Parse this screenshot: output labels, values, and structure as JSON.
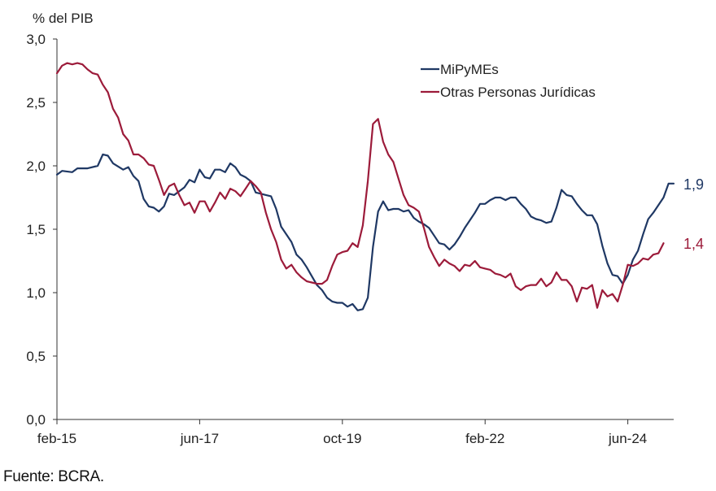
{
  "source": "Fuente: BCRA.",
  "chart_data": {
    "type": "line",
    "ylabel": "% del PIB",
    "ylim": [
      0,
      3.0
    ],
    "yticks": [
      0,
      0.5,
      1.0,
      1.5,
      2.0,
      2.5,
      3.0
    ],
    "ytick_labels": [
      "0,0",
      "0,5",
      "1,0",
      "1,5",
      "2,0",
      "2,5",
      "3,0"
    ],
    "x_range": [
      "2015-02",
      "2025-02"
    ],
    "x_ticks": [
      {
        "date": "2015-02",
        "label": "feb-15"
      },
      {
        "date": "2017-06",
        "label": "jun-17"
      },
      {
        "date": "2019-10",
        "label": "oct-19"
      },
      {
        "date": "2022-02",
        "label": "feb-22"
      },
      {
        "date": "2024-06",
        "label": "jun-24"
      }
    ],
    "grid": false,
    "legend_position": "top-right",
    "series": [
      {
        "name": "MiPyMEs",
        "color": "#1f3864",
        "end_label": "1,9",
        "points": [
          [
            "2015-02",
            1.93
          ],
          [
            "2015-03",
            1.96
          ],
          [
            "2015-05",
            1.95
          ],
          [
            "2015-06",
            1.98
          ],
          [
            "2015-08",
            1.98
          ],
          [
            "2015-10",
            2.0
          ],
          [
            "2015-11",
            2.09
          ],
          [
            "2015-12",
            2.08
          ],
          [
            "2016-01",
            2.02
          ],
          [
            "2016-03",
            1.97
          ],
          [
            "2016-04",
            1.99
          ],
          [
            "2016-05",
            1.92
          ],
          [
            "2016-06",
            1.88
          ],
          [
            "2016-07",
            1.74
          ],
          [
            "2016-08",
            1.68
          ],
          [
            "2016-09",
            1.67
          ],
          [
            "2016-10",
            1.64
          ],
          [
            "2016-11",
            1.68
          ],
          [
            "2016-12",
            1.78
          ],
          [
            "2017-01",
            1.77
          ],
          [
            "2017-02",
            1.8
          ],
          [
            "2017-03",
            1.83
          ],
          [
            "2017-04",
            1.89
          ],
          [
            "2017-05",
            1.87
          ],
          [
            "2017-06",
            1.97
          ],
          [
            "2017-07",
            1.91
          ],
          [
            "2017-08",
            1.9
          ],
          [
            "2017-09",
            1.97
          ],
          [
            "2017-10",
            1.97
          ],
          [
            "2017-11",
            1.95
          ],
          [
            "2017-12",
            2.02
          ],
          [
            "2018-01",
            1.99
          ],
          [
            "2018-02",
            1.93
          ],
          [
            "2018-03",
            1.91
          ],
          [
            "2018-04",
            1.88
          ],
          [
            "2018-05",
            1.79
          ],
          [
            "2018-06",
            1.78
          ],
          [
            "2018-07",
            1.77
          ],
          [
            "2018-08",
            1.76
          ],
          [
            "2018-09",
            1.66
          ],
          [
            "2018-10",
            1.52
          ],
          [
            "2018-11",
            1.46
          ],
          [
            "2018-12",
            1.4
          ],
          [
            "2019-01",
            1.3
          ],
          [
            "2019-02",
            1.26
          ],
          [
            "2019-03",
            1.2
          ],
          [
            "2019-04",
            1.13
          ],
          [
            "2019-05",
            1.06
          ],
          [
            "2019-06",
            1.02
          ],
          [
            "2019-07",
            0.96
          ],
          [
            "2019-08",
            0.93
          ],
          [
            "2019-09",
            0.92
          ],
          [
            "2019-10",
            0.92
          ],
          [
            "2019-11",
            0.89
          ],
          [
            "2019-12",
            0.91
          ],
          [
            "2020-01",
            0.86
          ],
          [
            "2020-02",
            0.87
          ],
          [
            "2020-03",
            0.96
          ],
          [
            "2020-04",
            1.36
          ],
          [
            "2020-05",
            1.64
          ],
          [
            "2020-06",
            1.72
          ],
          [
            "2020-07",
            1.65
          ],
          [
            "2020-08",
            1.66
          ],
          [
            "2020-09",
            1.66
          ],
          [
            "2020-10",
            1.64
          ],
          [
            "2020-11",
            1.65
          ],
          [
            "2020-12",
            1.59
          ],
          [
            "2021-01",
            1.56
          ],
          [
            "2021-02",
            1.54
          ],
          [
            "2021-03",
            1.51
          ],
          [
            "2021-04",
            1.45
          ],
          [
            "2021-05",
            1.39
          ],
          [
            "2021-06",
            1.38
          ],
          [
            "2021-07",
            1.34
          ],
          [
            "2021-08",
            1.38
          ],
          [
            "2021-09",
            1.44
          ],
          [
            "2021-10",
            1.51
          ],
          [
            "2021-11",
            1.57
          ],
          [
            "2021-12",
            1.63
          ],
          [
            "2022-01",
            1.7
          ],
          [
            "2022-02",
            1.7
          ],
          [
            "2022-03",
            1.73
          ],
          [
            "2022-04",
            1.75
          ],
          [
            "2022-05",
            1.75
          ],
          [
            "2022-06",
            1.73
          ],
          [
            "2022-07",
            1.75
          ],
          [
            "2022-08",
            1.75
          ],
          [
            "2022-09",
            1.7
          ],
          [
            "2022-10",
            1.66
          ],
          [
            "2022-11",
            1.6
          ],
          [
            "2022-12",
            1.58
          ],
          [
            "2023-01",
            1.57
          ],
          [
            "2023-02",
            1.55
          ],
          [
            "2023-03",
            1.56
          ],
          [
            "2023-04",
            1.67
          ],
          [
            "2023-05",
            1.81
          ],
          [
            "2023-06",
            1.77
          ],
          [
            "2023-07",
            1.76
          ],
          [
            "2023-08",
            1.7
          ],
          [
            "2023-09",
            1.65
          ],
          [
            "2023-10",
            1.61
          ],
          [
            "2023-11",
            1.61
          ],
          [
            "2023-12",
            1.54
          ],
          [
            "2024-01",
            1.37
          ],
          [
            "2024-02",
            1.23
          ],
          [
            "2024-03",
            1.14
          ],
          [
            "2024-04",
            1.13
          ],
          [
            "2024-05",
            1.07
          ],
          [
            "2024-06",
            1.14
          ],
          [
            "2024-07",
            1.26
          ],
          [
            "2024-08",
            1.33
          ],
          [
            "2024-09",
            1.46
          ],
          [
            "2024-10",
            1.58
          ],
          [
            "2024-11",
            1.63
          ],
          [
            "2024-12",
            1.69
          ],
          [
            "2025-01",
            1.75
          ],
          [
            "2025-02",
            1.86
          ],
          [
            "2025-03",
            1.86
          ]
        ]
      },
      {
        "name": "Otras Personas Jurídicas",
        "color": "#9c1b3a",
        "end_label": "1,4",
        "points": [
          [
            "2015-02",
            2.73
          ],
          [
            "2015-03",
            2.79
          ],
          [
            "2015-04",
            2.81
          ],
          [
            "2015-05",
            2.8
          ],
          [
            "2015-06",
            2.81
          ],
          [
            "2015-07",
            2.8
          ],
          [
            "2015-08",
            2.76
          ],
          [
            "2015-09",
            2.73
          ],
          [
            "2015-10",
            2.72
          ],
          [
            "2015-11",
            2.64
          ],
          [
            "2015-12",
            2.58
          ],
          [
            "2016-01",
            2.45
          ],
          [
            "2016-02",
            2.38
          ],
          [
            "2016-03",
            2.25
          ],
          [
            "2016-04",
            2.2
          ],
          [
            "2016-05",
            2.09
          ],
          [
            "2016-06",
            2.09
          ],
          [
            "2016-07",
            2.06
          ],
          [
            "2016-08",
            2.01
          ],
          [
            "2016-09",
            2.0
          ],
          [
            "2016-10",
            1.89
          ],
          [
            "2016-11",
            1.77
          ],
          [
            "2016-12",
            1.84
          ],
          [
            "2017-01",
            1.86
          ],
          [
            "2017-02",
            1.77
          ],
          [
            "2017-03",
            1.69
          ],
          [
            "2017-04",
            1.71
          ],
          [
            "2017-05",
            1.63
          ],
          [
            "2017-06",
            1.72
          ],
          [
            "2017-07",
            1.72
          ],
          [
            "2017-08",
            1.64
          ],
          [
            "2017-09",
            1.71
          ],
          [
            "2017-10",
            1.79
          ],
          [
            "2017-11",
            1.74
          ],
          [
            "2017-12",
            1.82
          ],
          [
            "2018-01",
            1.8
          ],
          [
            "2018-02",
            1.76
          ],
          [
            "2018-03",
            1.82
          ],
          [
            "2018-04",
            1.88
          ],
          [
            "2018-05",
            1.84
          ],
          [
            "2018-06",
            1.79
          ],
          [
            "2018-07",
            1.63
          ],
          [
            "2018-08",
            1.5
          ],
          [
            "2018-09",
            1.4
          ],
          [
            "2018-10",
            1.26
          ],
          [
            "2018-11",
            1.19
          ],
          [
            "2018-12",
            1.22
          ],
          [
            "2019-01",
            1.16
          ],
          [
            "2019-02",
            1.12
          ],
          [
            "2019-03",
            1.09
          ],
          [
            "2019-04",
            1.08
          ],
          [
            "2019-05",
            1.07
          ],
          [
            "2019-06",
            1.07
          ],
          [
            "2019-07",
            1.1
          ],
          [
            "2019-08",
            1.21
          ],
          [
            "2019-09",
            1.3
          ],
          [
            "2019-10",
            1.32
          ],
          [
            "2019-11",
            1.33
          ],
          [
            "2019-12",
            1.39
          ],
          [
            "2020-01",
            1.36
          ],
          [
            "2020-02",
            1.53
          ],
          [
            "2020-03",
            1.88
          ],
          [
            "2020-04",
            2.33
          ],
          [
            "2020-05",
            2.37
          ],
          [
            "2020-06",
            2.19
          ],
          [
            "2020-07",
            2.09
          ],
          [
            "2020-08",
            2.03
          ],
          [
            "2020-09",
            1.9
          ],
          [
            "2020-10",
            1.77
          ],
          [
            "2020-11",
            1.69
          ],
          [
            "2020-12",
            1.67
          ],
          [
            "2021-01",
            1.64
          ],
          [
            "2021-02",
            1.51
          ],
          [
            "2021-03",
            1.36
          ],
          [
            "2021-04",
            1.28
          ],
          [
            "2021-05",
            1.21
          ],
          [
            "2021-06",
            1.26
          ],
          [
            "2021-07",
            1.23
          ],
          [
            "2021-08",
            1.21
          ],
          [
            "2021-09",
            1.17
          ],
          [
            "2021-10",
            1.22
          ],
          [
            "2021-11",
            1.21
          ],
          [
            "2021-12",
            1.25
          ],
          [
            "2022-01",
            1.2
          ],
          [
            "2022-02",
            1.19
          ],
          [
            "2022-03",
            1.18
          ],
          [
            "2022-04",
            1.15
          ],
          [
            "2022-05",
            1.14
          ],
          [
            "2022-06",
            1.12
          ],
          [
            "2022-07",
            1.15
          ],
          [
            "2022-08",
            1.05
          ],
          [
            "2022-09",
            1.02
          ],
          [
            "2022-10",
            1.05
          ],
          [
            "2022-11",
            1.06
          ],
          [
            "2022-12",
            1.06
          ],
          [
            "2023-01",
            1.11
          ],
          [
            "2023-02",
            1.05
          ],
          [
            "2023-03",
            1.08
          ],
          [
            "2023-04",
            1.16
          ],
          [
            "2023-05",
            1.1
          ],
          [
            "2023-06",
            1.1
          ],
          [
            "2023-07",
            1.05
          ],
          [
            "2023-08",
            0.93
          ],
          [
            "2023-09",
            1.04
          ],
          [
            "2023-10",
            1.03
          ],
          [
            "2023-11",
            1.06
          ],
          [
            "2023-12",
            0.88
          ],
          [
            "2024-01",
            1.02
          ],
          [
            "2024-02",
            0.97
          ],
          [
            "2024-03",
            0.99
          ],
          [
            "2024-04",
            0.93
          ],
          [
            "2024-05",
            1.06
          ],
          [
            "2024-06",
            1.22
          ],
          [
            "2024-07",
            1.21
          ],
          [
            "2024-08",
            1.23
          ],
          [
            "2024-09",
            1.27
          ],
          [
            "2024-10",
            1.26
          ],
          [
            "2024-11",
            1.3
          ],
          [
            "2024-12",
            1.31
          ],
          [
            "2025-01",
            1.39
          ]
        ]
      }
    ]
  }
}
